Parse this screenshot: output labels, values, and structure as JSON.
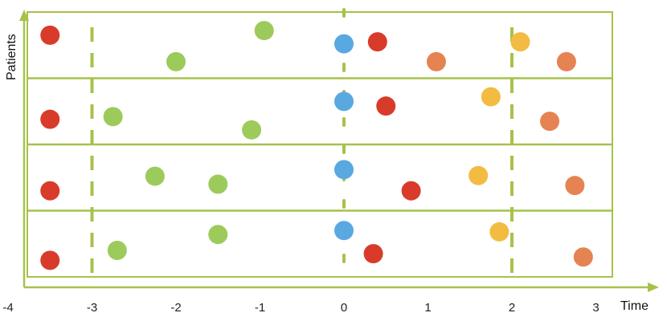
{
  "axes": {
    "x_title": "Time",
    "y_title": "Patients",
    "x_tick_labels": [
      "-4",
      "-3",
      "-2",
      "-1",
      "0",
      "1",
      "2",
      "3"
    ]
  },
  "colors": {
    "frame": "#a6c24a",
    "red": "#d93b2b",
    "green": "#9ccb5b",
    "blue": "#5aa8e0",
    "orange": "#e58353",
    "yellow": "#f2bc42"
  },
  "chart_data": {
    "type": "scatter",
    "x_range": [
      -4,
      3
    ],
    "dashed_reference_lines_x": [
      -3,
      0,
      2
    ],
    "patients": [
      {
        "points": [
          {
            "x": -3.5,
            "y": 0.65,
            "color": "red"
          },
          {
            "x": -2.0,
            "y": 0.25,
            "color": "green"
          },
          {
            "x": -0.95,
            "y": 0.72,
            "color": "green"
          },
          {
            "x": 0.0,
            "y": 0.52,
            "color": "blue"
          },
          {
            "x": 0.4,
            "y": 0.55,
            "color": "red"
          },
          {
            "x": 1.1,
            "y": 0.25,
            "color": "orange"
          },
          {
            "x": 2.1,
            "y": 0.55,
            "color": "yellow"
          },
          {
            "x": 2.65,
            "y": 0.25,
            "color": "orange"
          }
        ]
      },
      {
        "points": [
          {
            "x": -3.5,
            "y": 0.38,
            "color": "red"
          },
          {
            "x": -2.75,
            "y": 0.42,
            "color": "green"
          },
          {
            "x": -1.1,
            "y": 0.22,
            "color": "green"
          },
          {
            "x": 0.0,
            "y": 0.65,
            "color": "blue"
          },
          {
            "x": 0.5,
            "y": 0.58,
            "color": "red"
          },
          {
            "x": 1.75,
            "y": 0.72,
            "color": "yellow"
          },
          {
            "x": 2.45,
            "y": 0.35,
            "color": "orange"
          }
        ]
      },
      {
        "points": [
          {
            "x": -3.5,
            "y": 0.3,
            "color": "red"
          },
          {
            "x": -2.25,
            "y": 0.52,
            "color": "green"
          },
          {
            "x": -1.5,
            "y": 0.4,
            "color": "green"
          },
          {
            "x": 0.0,
            "y": 0.62,
            "color": "blue"
          },
          {
            "x": 0.8,
            "y": 0.3,
            "color": "red"
          },
          {
            "x": 1.6,
            "y": 0.53,
            "color": "yellow"
          },
          {
            "x": 2.75,
            "y": 0.38,
            "color": "orange"
          }
        ]
      },
      {
        "points": [
          {
            "x": -3.5,
            "y": 0.25,
            "color": "red"
          },
          {
            "x": -2.7,
            "y": 0.4,
            "color": "green"
          },
          {
            "x": -1.5,
            "y": 0.64,
            "color": "green"
          },
          {
            "x": 0.0,
            "y": 0.7,
            "color": "blue"
          },
          {
            "x": 0.35,
            "y": 0.35,
            "color": "red"
          },
          {
            "x": 1.85,
            "y": 0.68,
            "color": "yellow"
          },
          {
            "x": 2.85,
            "y": 0.3,
            "color": "orange"
          }
        ]
      }
    ]
  }
}
